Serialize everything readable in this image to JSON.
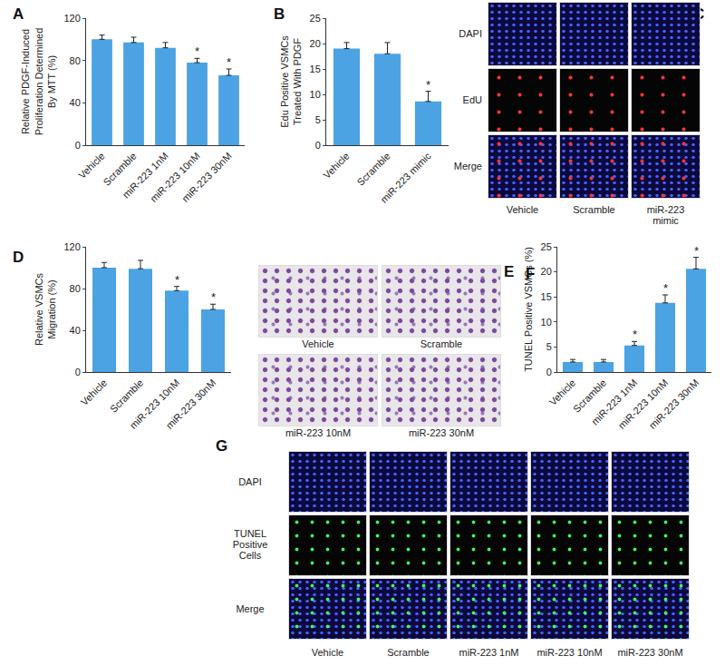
{
  "chart_data": [
    {
      "panel": "A",
      "type": "bar",
      "categories": [
        "Vehicle",
        "Scramble",
        "miR-223 1nM",
        "miR-223 10nM",
        "miR-223 30nM"
      ],
      "values": [
        100,
        97,
        92,
        78,
        66
      ],
      "errors": [
        4,
        5,
        5,
        4,
        6
      ],
      "ylabel": "Relative PDGF-Induced\nProliferation Determined\nBy MTT (%)",
      "ylim": [
        0,
        120
      ],
      "yticks": [
        0,
        40,
        80,
        120
      ],
      "color": "#4ba3e3",
      "grid": false,
      "annotations": [
        {
          "category": "miR-223 10nM",
          "text": "*"
        },
        {
          "category": "miR-223 30nM",
          "text": "*"
        }
      ]
    },
    {
      "panel": "B",
      "type": "bar",
      "categories": [
        "Vehicle",
        "Scramble",
        "miR-223 mimic"
      ],
      "values": [
        19,
        18,
        8.6
      ],
      "errors": [
        1.2,
        2.2,
        2
      ],
      "ylabel": "Edu Positive VSMCs\nTreated With PDGF",
      "ylim": [
        0,
        25
      ],
      "yticks": [
        0,
        5,
        10,
        15,
        20,
        25
      ],
      "color": "#4ba3e3",
      "grid": false,
      "annotations": [
        {
          "category": "miR-223 mimic",
          "text": "*"
        }
      ]
    },
    {
      "panel": "D",
      "type": "bar",
      "categories": [
        "Vehicle",
        "Scramble",
        "miR-223 10nM",
        "miR-223 30nM"
      ],
      "values": [
        100,
        99,
        78,
        60
      ],
      "errors": [
        5,
        8,
        4,
        5
      ],
      "ylabel": "Relative VSMCs\nMigration (%)",
      "ylim": [
        0,
        120
      ],
      "yticks": [
        0,
        40,
        80,
        120
      ],
      "color": "#4ba3e3",
      "grid": false,
      "annotations": [
        {
          "category": "miR-223 10nM",
          "text": "*"
        },
        {
          "category": "miR-223 30nM",
          "text": "*"
        }
      ]
    },
    {
      "panel": "F",
      "type": "bar",
      "categories": [
        "Vehicle",
        "Scramble",
        "miR-223 1nM",
        "miR-223 10nM",
        "miR-223 30nM"
      ],
      "values": [
        2,
        2,
        5.3,
        13.8,
        20.6
      ],
      "errors": [
        0.5,
        0.5,
        0.8,
        1.6,
        2.3
      ],
      "ylabel": "TUNEL Positive VSMCs (%)",
      "ylim": [
        0,
        25
      ],
      "yticks": [
        0,
        5,
        10,
        15,
        20,
        25
      ],
      "color": "#4ba3e3",
      "grid": false,
      "annotations": [
        {
          "category": "miR-223 1nM",
          "text": "*"
        },
        {
          "category": "miR-223 10nM",
          "text": "*"
        },
        {
          "category": "miR-223 30nM",
          "text": "*"
        }
      ]
    }
  ],
  "image_panels": [
    {
      "panel": "C",
      "rows": [
        "DAPI",
        "EdU",
        "Merge"
      ],
      "columns": [
        "Vehicle",
        "Scramble",
        "miR-223\nmimic"
      ]
    },
    {
      "panel": "E",
      "tiles": [
        "Vehicle",
        "Scramble",
        "miR-223 10nM",
        "miR-223 30nM"
      ]
    },
    {
      "panel": "G",
      "rows": [
        "DAPI",
        "TUNEL\nPositive\nCells",
        "Merge"
      ],
      "columns": [
        "Vehicle",
        "Scramble",
        "miR-223 1nM",
        "miR-223 10nM",
        "miR-223 30nM"
      ]
    }
  ]
}
